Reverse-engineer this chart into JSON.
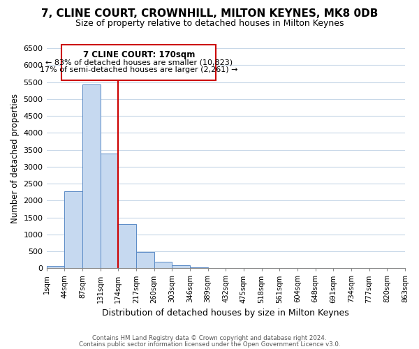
{
  "title": "7, CLINE COURT, CROWNHILL, MILTON KEYNES, MK8 0DB",
  "subtitle": "Size of property relative to detached houses in Milton Keynes",
  "xlabel": "Distribution of detached houses by size in Milton Keynes",
  "ylabel": "Number of detached properties",
  "bin_labels": [
    "1sqm",
    "44sqm",
    "87sqm",
    "131sqm",
    "174sqm",
    "217sqm",
    "260sqm",
    "303sqm",
    "346sqm",
    "389sqm",
    "432sqm",
    "475sqm",
    "518sqm",
    "561sqm",
    "604sqm",
    "648sqm",
    "691sqm",
    "734sqm",
    "777sqm",
    "820sqm",
    "863sqm"
  ],
  "bar_heights": [
    75,
    2270,
    5430,
    3380,
    1310,
    480,
    190,
    80,
    30,
    5,
    0,
    0,
    0,
    0,
    0,
    0,
    0,
    0,
    0,
    0
  ],
  "bar_color": "#c6d9f0",
  "bar_edge_color": "#5a8ac6",
  "vline_x": 3,
  "vline_label": "7 CLINE COURT: 170sqm",
  "annotation_line1": "← 83% of detached houses are smaller (10,823)",
  "annotation_line2": "17% of semi-detached houses are larger (2,261) →",
  "annotation_box_color": "#ffffff",
  "annotation_box_edge": "#cc0000",
  "ylim": [
    0,
    6500
  ],
  "yticks": [
    0,
    500,
    1000,
    1500,
    2000,
    2500,
    3000,
    3500,
    4000,
    4500,
    5000,
    5500,
    6000,
    6500
  ],
  "footer1": "Contains HM Land Registry data © Crown copyright and database right 2024.",
  "footer2": "Contains public sector information licensed under the Open Government Licence v3.0.",
  "title_fontsize": 11,
  "subtitle_fontsize": 9,
  "background_color": "#ffffff",
  "grid_color": "#c8d8e8"
}
